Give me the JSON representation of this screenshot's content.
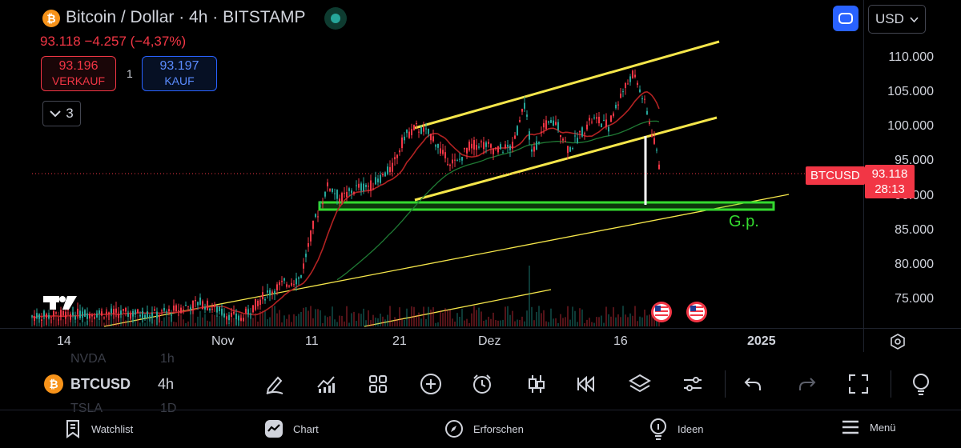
{
  "header": {
    "coin_symbol": "₿",
    "title": "Bitcoin / Dollar · 4h · BITSTAMP",
    "price_change": "93.118  −4.257 (−4,37%)",
    "sell": {
      "value": "93.196",
      "label": "VERKAUF"
    },
    "quantity": "1",
    "buy": {
      "value": "93.197",
      "label": "KAUF"
    },
    "indicator_count": "3",
    "currency": "USD"
  },
  "chart": {
    "y_ticks": [
      "110.000",
      "105.000",
      "100.000",
      "95.000",
      "85.000",
      "80.000",
      "75.000"
    ],
    "x_ticks": [
      "14",
      "Nov",
      "11",
      "21",
      "Dez",
      "16",
      "2025"
    ],
    "last_price_badge": {
      "symbol": "BTCUSD",
      "price": "93.118",
      "countdown": "28:13"
    },
    "ghost_level": "90.000",
    "annotation": "G.p.",
    "colors": {
      "up": "#26a69a",
      "down": "#f23645",
      "channel": "#f5e64a",
      "zone": "#34d92f"
    }
  },
  "toolbar": {
    "symbol": "BTCUSD",
    "interval": "4h",
    "icons": [
      "pencil-icon",
      "chart-type-icon",
      "layout-grid-icon",
      "add-icon",
      "alarm-icon",
      "candles-icon",
      "replay-icon",
      "layers-icon",
      "settings-sliders-icon",
      "undo-icon",
      "redo-icon",
      "fullscreen-icon",
      "ideas-icon"
    ],
    "ghost_rows": [
      "NVDA",
      "1h",
      "TSLA",
      "1D"
    ]
  },
  "nav": {
    "watchlist": "Watchlist",
    "chart": "Chart",
    "explore": "Erforschen",
    "ideas": "Ideen",
    "menu": "Menü"
  }
}
